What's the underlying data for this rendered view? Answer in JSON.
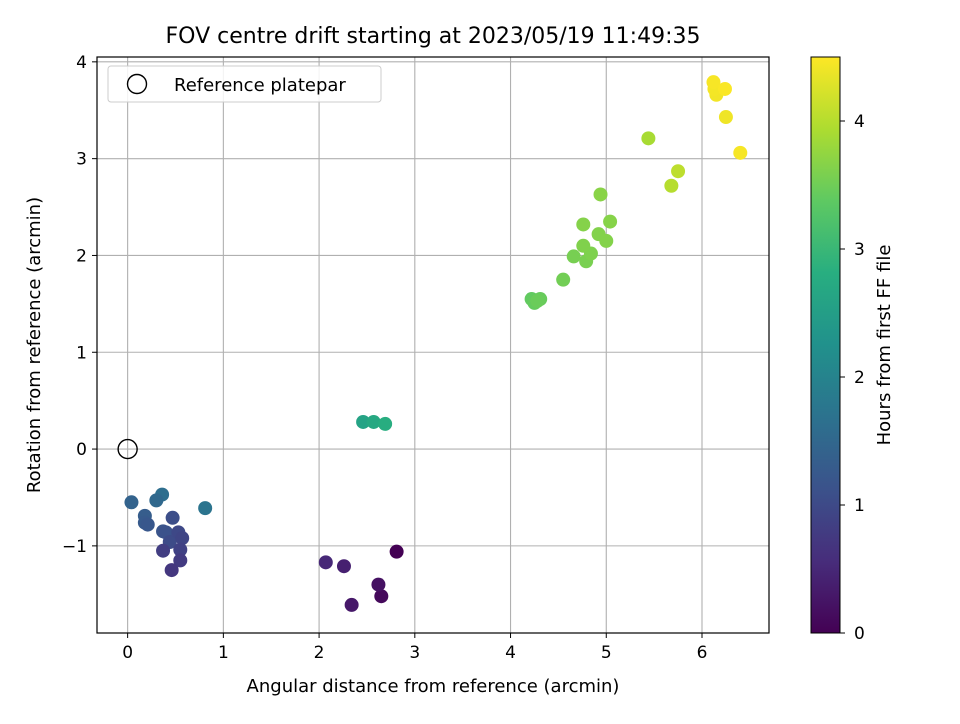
{
  "chart_data": {
    "type": "scatter",
    "title": "FOV centre drift starting at 2023/05/19 11:49:35",
    "xlabel": "Angular distance from reference (arcmin)",
    "ylabel": "Rotation from reference (arcmin)",
    "xlim": [
      -0.32,
      6.7
    ],
    "ylim": [
      -1.9,
      4.05
    ],
    "xticks": [
      0,
      1,
      2,
      3,
      4,
      5,
      6
    ],
    "xtick_labels": [
      "0",
      "1",
      "2",
      "3",
      "4",
      "5",
      "6"
    ],
    "yticks": [
      -1,
      0,
      1,
      2,
      3,
      4
    ],
    "ytick_labels": [
      "−1",
      "0",
      "1",
      "2",
      "3",
      "4"
    ],
    "grid": true,
    "legend": {
      "position": "upper-left",
      "entries": [
        "Reference platepar"
      ]
    },
    "reference_point": {
      "x": 0,
      "y": 0,
      "marker": "open-circle",
      "edge_color": "#000000"
    },
    "colorbar": {
      "label": "Hours from first FF file",
      "colormap": "viridis",
      "range": [
        0,
        4.5
      ],
      "ticks": [
        0,
        1,
        2,
        3,
        4
      ],
      "tick_labels": [
        "0",
        "1",
        "2",
        "3",
        "4"
      ]
    },
    "series": [
      {
        "x": [
          2.81,
          2.65,
          2.62,
          2.34,
          2.26,
          2.07,
          0.81,
          0.36,
          0.3,
          0.04,
          0.18,
          0.18,
          0.21,
          0.37,
          0.4,
          0.47,
          0.44,
          0.53,
          0.57,
          0.55,
          0.37,
          0.55,
          0.46,
          2.46,
          2.57,
          2.69,
          4.22,
          4.25,
          4.31,
          4.28,
          4.55,
          4.66,
          4.79,
          4.84,
          4.76,
          4.92,
          5.0,
          4.76,
          5.04,
          4.94,
          5.44,
          5.68,
          5.75,
          6.4,
          6.25,
          6.15,
          6.13,
          6.12,
          6.24
        ],
        "y": [
          -1.06,
          -1.52,
          -1.4,
          -1.61,
          -1.21,
          -1.17,
          -0.61,
          -0.47,
          -0.53,
          -0.55,
          -0.69,
          -0.76,
          -0.78,
          -0.85,
          -0.86,
          -0.71,
          -0.96,
          -0.86,
          -0.92,
          -1.04,
          -1.05,
          -1.15,
          -1.25,
          0.28,
          0.28,
          0.26,
          1.55,
          1.51,
          1.55,
          1.53,
          1.75,
          1.99,
          1.94,
          2.02,
          2.1,
          2.22,
          2.15,
          2.32,
          2.35,
          2.63,
          3.21,
          2.72,
          2.87,
          3.06,
          3.43,
          3.66,
          3.72,
          3.79,
          3.72
        ],
        "hours": [
          0.0,
          0.1,
          0.2,
          0.3,
          0.4,
          0.5,
          1.72,
          1.62,
          1.52,
          1.42,
          1.32,
          1.27,
          1.22,
          1.17,
          1.12,
          1.07,
          1.02,
          0.97,
          0.92,
          0.87,
          0.82,
          0.77,
          0.72,
          2.6,
          2.7,
          2.8,
          3.4,
          3.42,
          3.44,
          3.46,
          3.52,
          3.55,
          3.57,
          3.6,
          3.62,
          3.63,
          3.64,
          3.65,
          3.66,
          3.68,
          3.9,
          4.0,
          4.05,
          4.45,
          4.4,
          4.42,
          4.44,
          4.46,
          4.48
        ]
      }
    ]
  }
}
